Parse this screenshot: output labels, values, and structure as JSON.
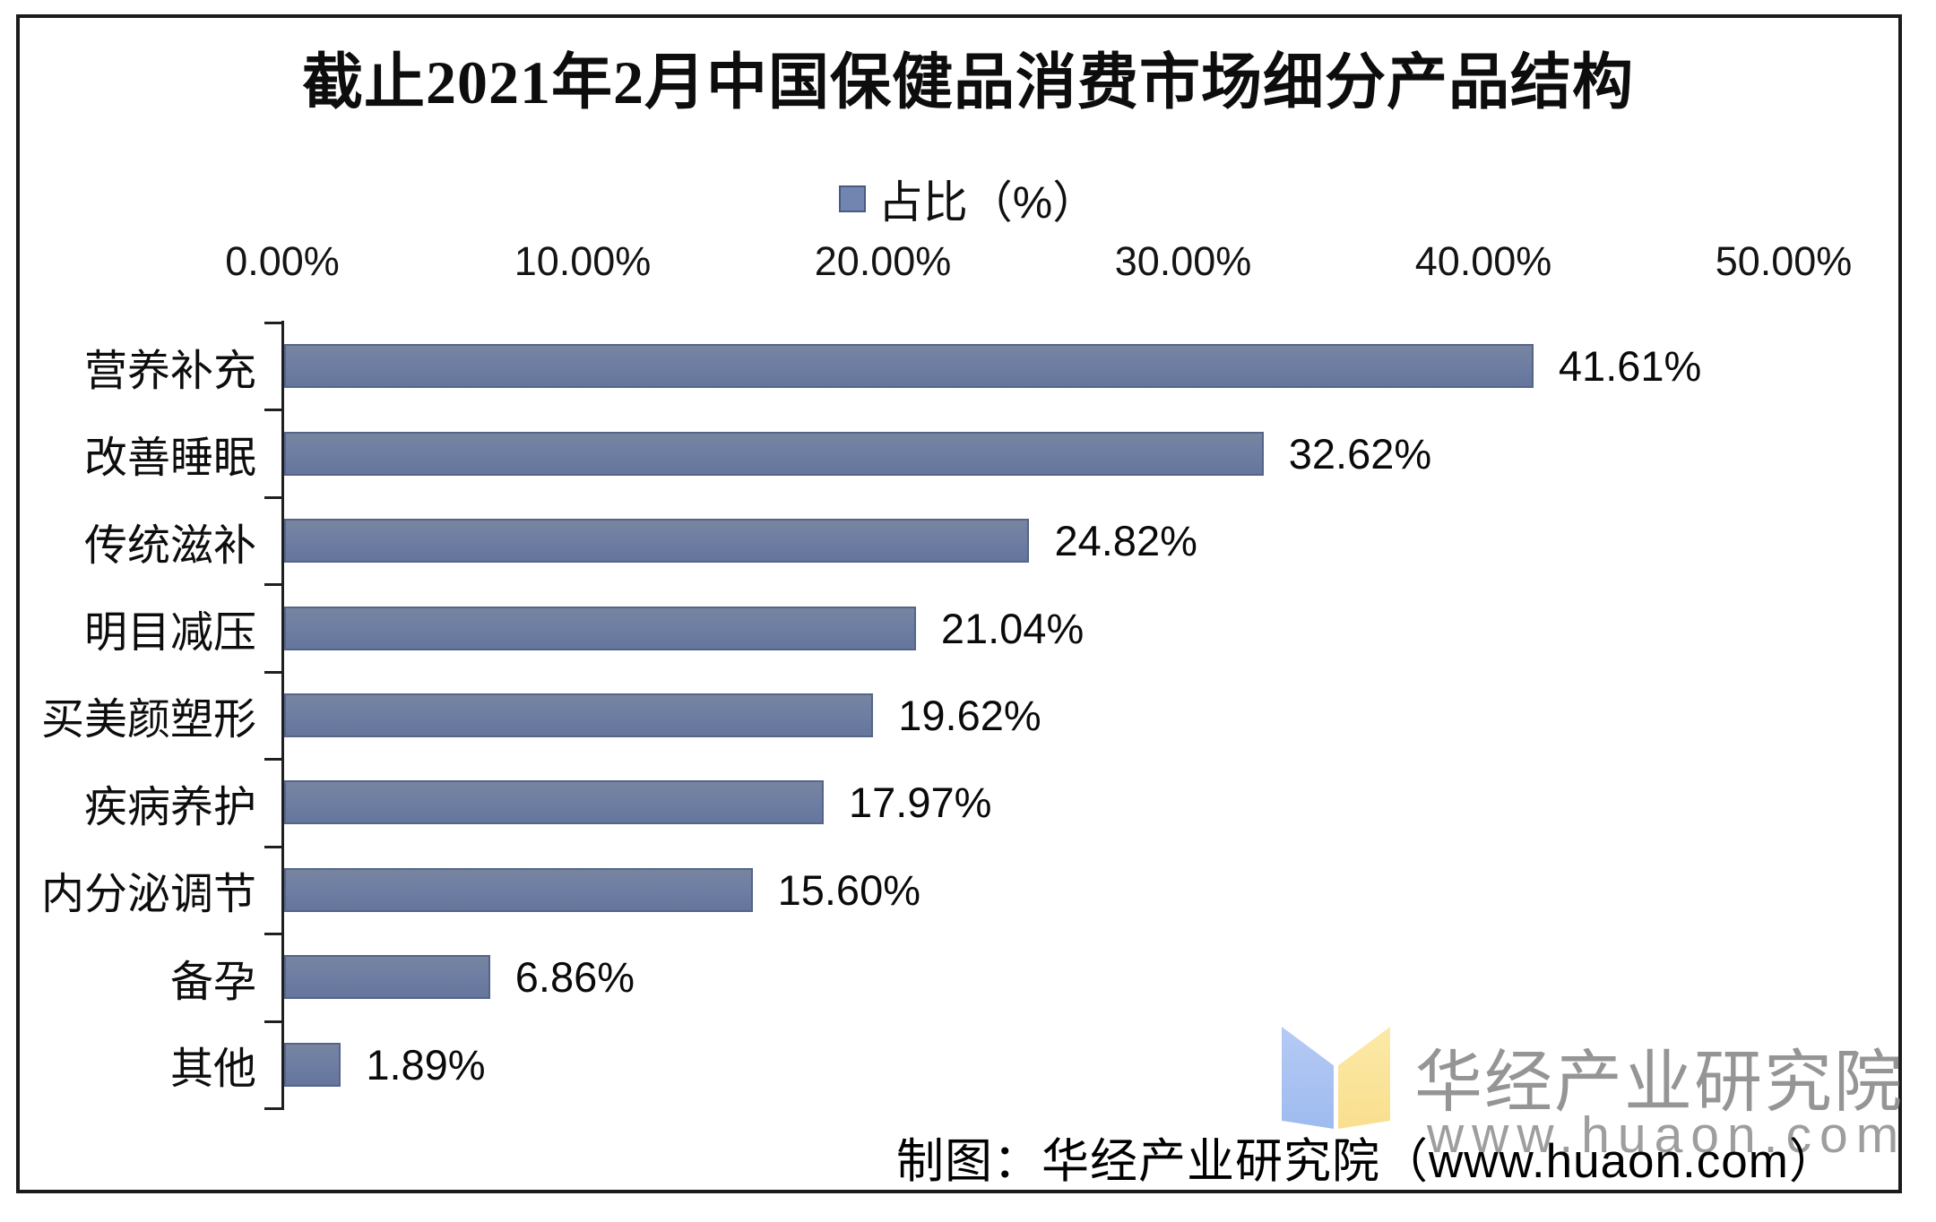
{
  "title": "截止2021年2月中国保健品消费市场细分产品结构",
  "legend": {
    "label": "占比（%）",
    "marker_color": "#7185B0"
  },
  "chart_data": {
    "type": "bar",
    "orientation": "horizontal",
    "title": "截止2021年2月中国保健品消费市场细分产品结构",
    "series_name": "占比（%）",
    "categories": [
      "营养补充",
      "改善睡眠",
      "传统滋补",
      "明目减压",
      "买美颜塑形",
      "疾病养护",
      "内分泌调节",
      "备孕",
      "其他"
    ],
    "values": [
      41.61,
      32.62,
      24.82,
      21.04,
      19.62,
      17.97,
      15.6,
      6.86,
      1.89
    ],
    "value_labels": [
      "41.61%",
      "32.62%",
      "24.82%",
      "21.04%",
      "19.62%",
      "17.97%",
      "15.60%",
      "6.86%",
      "1.89%"
    ],
    "x_ticks": [
      "0.00%",
      "10.00%",
      "20.00%",
      "30.00%",
      "40.00%",
      "50.00%"
    ],
    "xlim": [
      0,
      50
    ],
    "grid": false,
    "legend_position": "top",
    "bar_color": "#6F7EA3",
    "bar_border_color": "#55658A"
  },
  "footer": {
    "source_text": "制图：华经产业研究院（www.huaon.com）"
  },
  "watermark": {
    "org_name": "华经产业研究院",
    "website": "www.huaon.com",
    "book_blue": "#A9C3F1",
    "book_yellow": "#FBE49C"
  }
}
